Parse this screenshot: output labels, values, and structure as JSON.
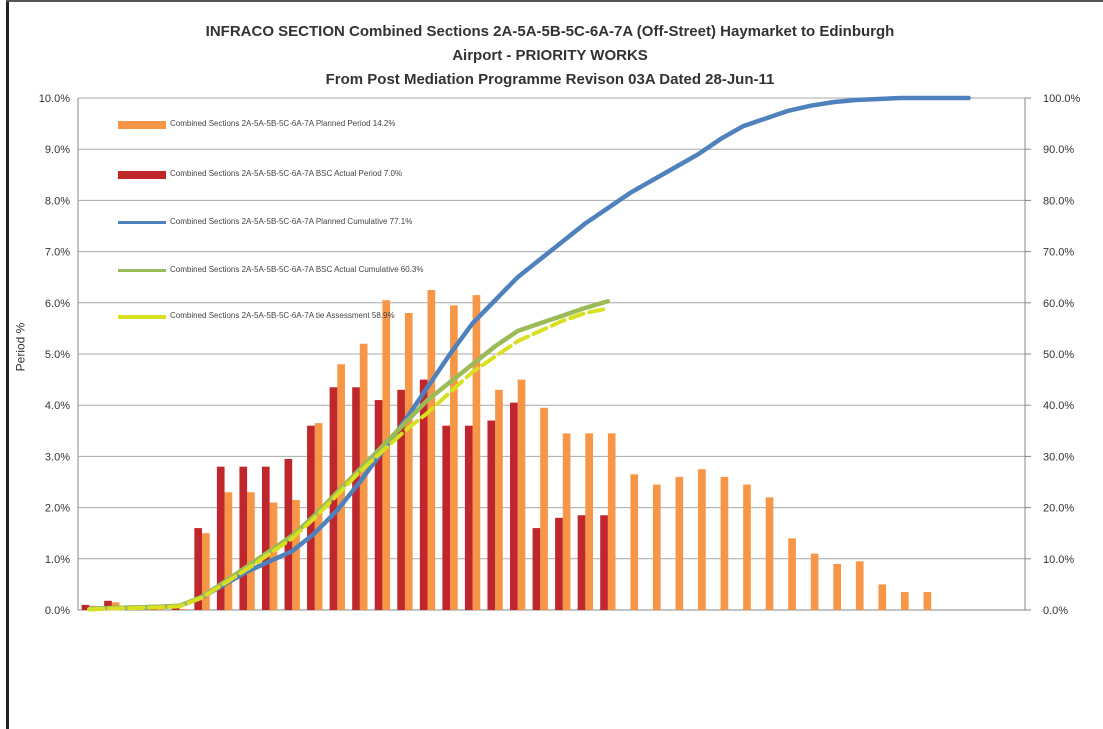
{
  "chart_data": {
    "type": "bar+line",
    "title_lines": [
      "INFRACO SECTION Combined Sections 2A-5A-5B-5C-6A-7A (Off-Street) Haymarket to Edinburgh",
      "Airport - PRIORITY WORKS",
      "From Post Mediation Programme Revison 03A Dated 28-Jun-11"
    ],
    "ylabel": "Period %",
    "y_left_ticks": [
      "0.0%",
      "1.0%",
      "2.0%",
      "3.0%",
      "4.0%",
      "5.0%",
      "6.0%",
      "7.0%",
      "8.0%",
      "9.0%",
      "10.0%"
    ],
    "y_right_ticks": [
      "0.0%",
      "10.0%",
      "20.0%",
      "30.0%",
      "40.0%",
      "50.0%",
      "60.0%",
      "70.0%",
      "80.0%",
      "90.0%",
      "100.0%"
    ],
    "ylim_left": [
      0,
      10
    ],
    "ylim_right": [
      0,
      100
    ],
    "grid": true,
    "legend_position": "top-left",
    "n_periods": 42,
    "series": [
      {
        "name": "Combined Sections 2A-5A-5B-5C-6A-7A Planned Period 14.2%",
        "kind": "bar",
        "axis": "left",
        "color": "#f79646",
        "values": [
          0.08,
          0.15,
          0.02,
          0.02,
          0.02,
          1.5,
          2.3,
          2.3,
          2.1,
          2.15,
          3.65,
          4.8,
          5.2,
          6.05,
          5.8,
          6.25,
          5.95,
          6.15,
          4.3,
          4.5,
          3.95,
          3.45,
          3.45,
          3.45,
          2.65,
          2.45,
          2.6,
          2.75,
          2.6,
          2.45,
          2.2,
          1.4,
          1.1,
          0.9,
          0.95,
          0.5,
          0.35,
          0.35
        ]
      },
      {
        "name": "Combined Sections 2A-5A-5B-5C-6A-7A BSC Actual Period 7.0%",
        "kind": "bar",
        "axis": "left",
        "color": "#c0272d",
        "values": [
          0.1,
          0.18,
          0.03,
          0.03,
          0.05,
          1.6,
          2.8,
          2.8,
          2.8,
          2.95,
          3.6,
          4.35,
          4.35,
          4.1,
          4.3,
          4.5,
          3.6,
          3.6,
          3.7,
          4.05,
          1.6,
          1.8,
          1.85,
          1.85
        ]
      },
      {
        "name": "Combined Sections 2A-5A-5B-5C-6A-7A Planned Cumulative 77.1%",
        "kind": "line",
        "axis": "right",
        "color": "#4f81bd",
        "values": [
          0.2,
          0.4,
          0.5,
          0.6,
          0.8,
          2.5,
          5.0,
          7.5,
          9.5,
          11.5,
          15.0,
          19.5,
          25.0,
          31.0,
          37.0,
          43.5,
          50.0,
          56.0,
          60.5,
          65.0,
          68.5,
          72.0,
          75.5,
          78.5,
          81.5,
          84.0,
          86.5,
          89.0,
          92.0,
          94.5,
          96.0,
          97.5,
          98.5,
          99.2,
          99.6,
          99.8,
          100.0,
          100.0,
          100.0,
          100.0
        ]
      },
      {
        "name": "Combined Sections 2A-5A-5B-5C-6A-7A BSC Actual Cumulative 60.3%",
        "kind": "line",
        "axis": "right",
        "color": "#9bbb59",
        "values": [
          0.2,
          0.4,
          0.5,
          0.6,
          0.8,
          2.6,
          5.5,
          8.5,
          11.5,
          14.5,
          18.5,
          23.0,
          27.5,
          32.0,
          36.5,
          41.0,
          44.5,
          48.0,
          51.5,
          54.5,
          56.0,
          57.5,
          59.0,
          60.3
        ]
      },
      {
        "name": "Combined Sections 2A-5A-5B-5C-6A-7A tie Assessment 58.9%",
        "kind": "line-dashed",
        "axis": "right",
        "color": "#d9e021",
        "values": [
          0.1,
          0.3,
          0.4,
          0.5,
          0.7,
          2.4,
          5.2,
          8.0,
          11.0,
          14.0,
          18.0,
          22.5,
          27.0,
          31.0,
          35.0,
          38.5,
          42.5,
          46.5,
          49.5,
          52.5,
          54.5,
          56.5,
          58.0,
          58.9
        ]
      }
    ]
  }
}
